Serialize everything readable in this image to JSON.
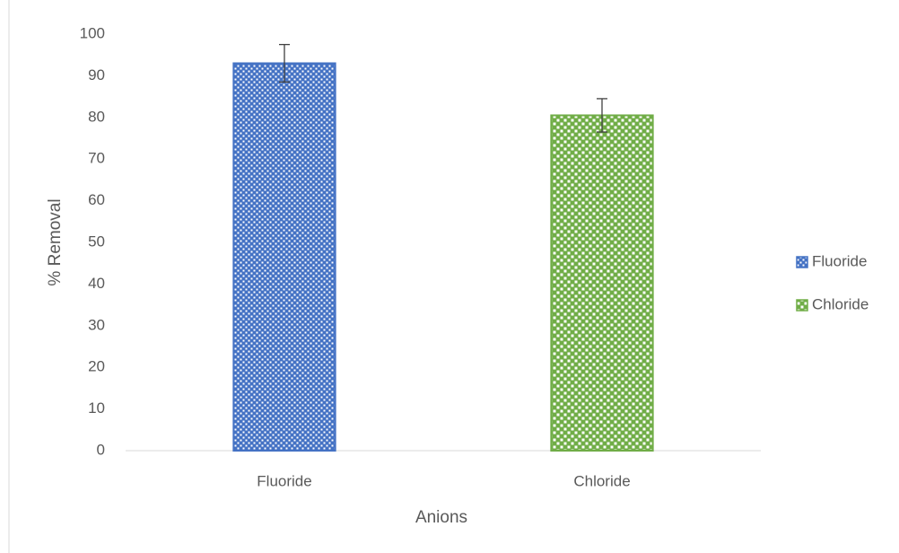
{
  "chart_data": {
    "type": "bar",
    "categories": [
      "Fluoride",
      "Chloride"
    ],
    "series": [
      {
        "name": "Fluoride",
        "color": "#4472c4",
        "values": [
          93,
          null
        ],
        "errors": [
          4.5,
          null
        ]
      },
      {
        "name": "Chloride",
        "color": "#70ad47",
        "values": [
          null,
          80.5
        ],
        "errors": [
          null,
          4
        ]
      }
    ],
    "x_label": "Anions",
    "y_label": "% Removal",
    "ylim": [
      0,
      100
    ],
    "yticks": [
      0,
      10,
      20,
      30,
      40,
      50,
      60,
      70,
      80,
      90,
      100
    ],
    "grid": false,
    "legend": "right"
  }
}
